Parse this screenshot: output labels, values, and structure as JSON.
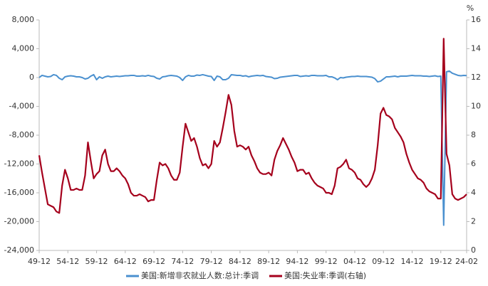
{
  "chart_data": {
    "type": "line",
    "categories": [
      "49-12",
      null,
      null,
      null,
      null,
      null,
      null,
      null,
      null,
      null,
      "54-12",
      null,
      null,
      null,
      null,
      null,
      null,
      null,
      null,
      null,
      "59-12",
      null,
      null,
      null,
      null,
      null,
      null,
      null,
      null,
      null,
      "64-12",
      null,
      null,
      null,
      null,
      null,
      null,
      null,
      null,
      null,
      "69-12",
      null,
      null,
      null,
      null,
      null,
      null,
      null,
      null,
      null,
      "74-12",
      null,
      null,
      null,
      null,
      null,
      null,
      null,
      null,
      null,
      "79-12",
      null,
      null,
      null,
      null,
      null,
      null,
      null,
      null,
      null,
      "84-12",
      null,
      null,
      null,
      null,
      null,
      null,
      null,
      null,
      null,
      "89-12",
      null,
      null,
      null,
      null,
      null,
      null,
      null,
      null,
      null,
      "94-12",
      null,
      null,
      null,
      null,
      null,
      null,
      null,
      null,
      null,
      "99-12",
      null,
      null,
      null,
      null,
      null,
      null,
      null,
      null,
      null,
      "04-12",
      null,
      null,
      null,
      null,
      null,
      null,
      null,
      null,
      null,
      "09-12",
      null,
      null,
      null,
      null,
      null,
      null,
      null,
      null,
      null,
      "14-12",
      null,
      null,
      null,
      null,
      null,
      null,
      null,
      null,
      null,
      "19-12",
      null,
      null,
      null,
      null,
      null,
      null,
      null,
      null,
      "24-02"
    ],
    "series": [
      {
        "name": "美国:新增非农就业人数:总计:季调",
        "color": "#4a90cf",
        "axis": "y",
        "values": [
          0,
          300,
          200,
          100,
          150,
          400,
          300,
          -100,
          -300,
          100,
          200,
          250,
          200,
          100,
          100,
          0,
          -200,
          -100,
          200,
          400,
          -300,
          100,
          -100,
          100,
          200,
          100,
          150,
          200,
          150,
          200,
          250,
          250,
          300,
          300,
          200,
          200,
          250,
          200,
          300,
          200,
          150,
          -100,
          -200,
          100,
          150,
          250,
          300,
          250,
          200,
          0,
          -400,
          100,
          300,
          200,
          200,
          350,
          300,
          400,
          300,
          200,
          150,
          -400,
          200,
          100,
          -300,
          -300,
          -100,
          400,
          350,
          300,
          300,
          200,
          250,
          100,
          200,
          250,
          300,
          250,
          300,
          150,
          100,
          50,
          -150,
          -100,
          50,
          100,
          150,
          200,
          250,
          300,
          300,
          150,
          200,
          250,
          200,
          300,
          300,
          250,
          250,
          250,
          300,
          100,
          100,
          -50,
          -300,
          0,
          -50,
          50,
          100,
          150,
          150,
          200,
          150,
          150,
          150,
          100,
          50,
          -150,
          -600,
          -500,
          -200,
          100,
          100,
          150,
          200,
          100,
          200,
          200,
          200,
          250,
          300,
          250,
          250,
          250,
          200,
          200,
          150,
          200,
          250,
          150,
          200,
          -20500,
          800,
          900,
          600,
          450,
          300,
          250,
          300,
          275
        ]
      },
      {
        "name": "美国:失业率:季调(右轴)",
        "color": "#a5001c",
        "axis": "y2",
        "values": [
          6.6,
          5.4,
          4.3,
          3.2,
          3.1,
          3.0,
          2.7,
          2.6,
          4.5,
          5.6,
          5.0,
          4.2,
          4.2,
          4.3,
          4.2,
          4.2,
          5.2,
          7.5,
          6.2,
          5.0,
          5.3,
          5.5,
          6.6,
          7.0,
          6.0,
          5.5,
          5.5,
          5.7,
          5.5,
          5.2,
          5.0,
          4.6,
          4.0,
          3.8,
          3.8,
          3.9,
          3.8,
          3.7,
          3.4,
          3.5,
          3.5,
          4.9,
          6.1,
          5.9,
          6.0,
          5.7,
          5.2,
          4.9,
          4.9,
          5.4,
          7.2,
          8.8,
          8.2,
          7.6,
          7.8,
          7.2,
          6.4,
          5.9,
          6.0,
          5.7,
          6.0,
          7.6,
          7.2,
          7.5,
          8.5,
          9.6,
          10.8,
          10.1,
          8.3,
          7.2,
          7.3,
          7.2,
          7.0,
          7.2,
          6.6,
          6.2,
          5.7,
          5.4,
          5.3,
          5.3,
          5.4,
          5.2,
          6.3,
          6.9,
          7.3,
          7.8,
          7.4,
          7.0,
          6.5,
          6.1,
          5.5,
          5.6,
          5.6,
          5.3,
          5.4,
          5.0,
          4.7,
          4.5,
          4.4,
          4.3,
          4.0,
          4.0,
          3.9,
          4.5,
          5.7,
          5.8,
          6.0,
          6.3,
          5.7,
          5.6,
          5.4,
          5.0,
          4.9,
          4.6,
          4.4,
          4.6,
          5.0,
          5.6,
          7.3,
          9.5,
          9.9,
          9.4,
          9.3,
          9.1,
          8.5,
          8.2,
          7.9,
          7.5,
          6.7,
          6.1,
          5.6,
          5.3,
          5.0,
          4.9,
          4.7,
          4.3,
          4.1,
          4.0,
          3.9,
          3.6,
          3.6,
          14.7,
          6.7,
          5.9,
          3.9,
          3.6,
          3.5,
          3.6,
          3.7,
          3.9
        ]
      }
    ],
    "ylim": [
      -24000,
      8000
    ],
    "yticks": [
      {
        "value": -24000,
        "label": "-24,000"
      },
      {
        "value": -20000,
        "label": "-20,000"
      },
      {
        "value": -16000,
        "label": "-16,000"
      },
      {
        "value": -12000,
        "label": "-12,000"
      },
      {
        "value": -8000,
        "label": "-8,000"
      },
      {
        "value": -4000,
        "label": "-4,000"
      },
      0,
      {
        "value": 4000,
        "label": "4,000"
      },
      {
        "value": 8000,
        "label": "8,000"
      }
    ],
    "y2lim": [
      0,
      16
    ],
    "y2ticks": [
      0,
      2,
      4,
      6,
      8,
      10,
      12,
      14,
      16
    ],
    "y2_label": "%",
    "legend": "bottom",
    "grid": false
  }
}
